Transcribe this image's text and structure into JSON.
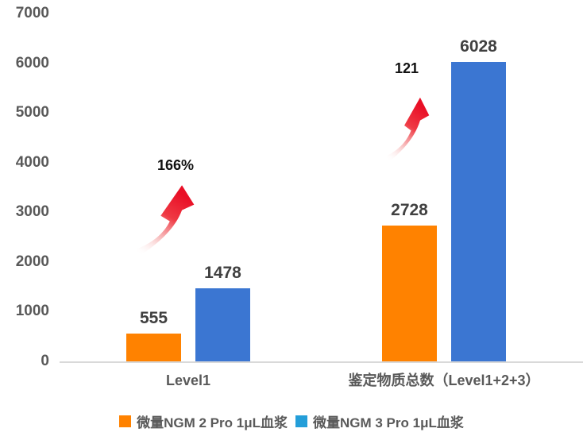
{
  "chart_data": {
    "type": "bar",
    "title": "",
    "categories": [
      "Level1",
      "鉴定物质总数（Level1+2+3）"
    ],
    "series": [
      {
        "name": "微量NGM 2 Pro 1μL血浆",
        "color": "#FF8200",
        "legend_color": "#FF8200",
        "values": [
          555,
          2728
        ]
      },
      {
        "name": "微量NGM 3 Pro 1μL血浆",
        "color": "#3B76D2",
        "legend_color": "#249ED9",
        "values": [
          1478,
          6028
        ]
      }
    ],
    "ylim": [
      0,
      7000
    ],
    "yticks": [
      0,
      1000,
      2000,
      3000,
      4000,
      5000,
      6000,
      7000
    ],
    "annotations": [
      {
        "text": "166%",
        "group": 0
      },
      {
        "text": "121",
        "group": 1
      }
    ],
    "legend_position": "bottom",
    "grid": false,
    "colors": {
      "axis_line": "#D9D9D9",
      "tick_text": "#595959",
      "value_text": "#404040",
      "annotation_text": "#111111",
      "arrow_red": "#ED1C24"
    }
  }
}
